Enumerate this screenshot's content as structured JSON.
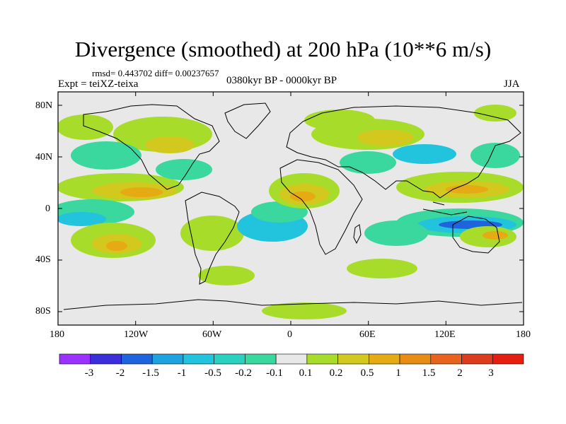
{
  "title": "Divergence (smoothed) at 200 hPa (10**6 m/s)",
  "stats": "rmsd= 0.443702 diff= 0.00237657",
  "experiment": "Expt = teiXZ-teixa",
  "period": "0380kyr BP - 0000kyr BP",
  "season": "JJA",
  "axes": {
    "x_ticks": [
      "180",
      "120W",
      "60W",
      "0",
      "60E",
      "120E",
      "180"
    ],
    "y_ticks": [
      "80N",
      "40N",
      "0",
      "40S",
      "80S"
    ]
  },
  "colorbar": {
    "labels": [
      "-3",
      "-2",
      "-1.5",
      "-1",
      "-0.5",
      "-0.2",
      "-0.1",
      "0.1",
      "0.2",
      "0.5",
      "1",
      "1.5",
      "2",
      "3"
    ],
    "colors": [
      "#9b30ff",
      "#3a2fd8",
      "#1e64dc",
      "#1fa3e0",
      "#22c3dc",
      "#2ad0c0",
      "#3ad79e",
      "#e8e8e8",
      "#a8dc2a",
      "#d2c81e",
      "#e6aa14",
      "#e88c14",
      "#e6641e",
      "#dc3c1e",
      "#e61e12"
    ]
  },
  "fill_colors": {
    "neutral": "#e8e8e8",
    "neg_weak": "#3ad79e",
    "neg_mid": "#22c3dc",
    "neg_strong": "#1e64dc",
    "pos_weak": "#a8dc2a",
    "pos_mid": "#d2c81e",
    "pos_strong": "#e6aa14"
  }
}
